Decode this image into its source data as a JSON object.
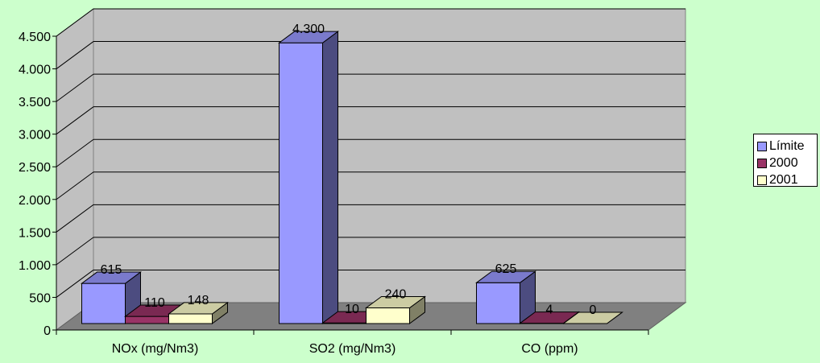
{
  "chart_data": {
    "type": "bar",
    "categories": [
      "NOx (mg/Nm3)",
      "SO2 (mg/Nm3)",
      "CO (ppm)"
    ],
    "series": [
      {
        "name": "Límite",
        "values": [
          615,
          4300,
          625
        ],
        "labels": [
          "615",
          "4.300",
          "625"
        ],
        "color": "#9999ff",
        "side_color": "#4c4c80",
        "top_color": "#7a7acc"
      },
      {
        "name": "2000",
        "values": [
          110,
          10,
          4
        ],
        "labels": [
          "110",
          "10",
          "4"
        ],
        "color": "#993366",
        "side_color": "#4c1a33",
        "top_color": "#7a2952"
      },
      {
        "name": "2001",
        "values": [
          148,
          240,
          0
        ],
        "labels": [
          "148",
          "240",
          "0"
        ],
        "color": "#ffffcc",
        "side_color": "#808066",
        "top_color": "#cccca3"
      }
    ],
    "ylim": [
      0,
      4500
    ],
    "yticks": [
      0,
      500,
      1000,
      1500,
      2000,
      2500,
      3000,
      3500,
      4000,
      4500
    ],
    "ytick_labels": [
      "0",
      "500",
      "1.000",
      "1.500",
      "2.000",
      "2.500",
      "3.000",
      "3.500",
      "4.000",
      "4.500"
    ],
    "grid": true,
    "legend_position": "right",
    "colors": {
      "background": "#ccffcc",
      "wall": "#c0c0c0",
      "floor": "#808080",
      "gridline": "#000000"
    }
  }
}
